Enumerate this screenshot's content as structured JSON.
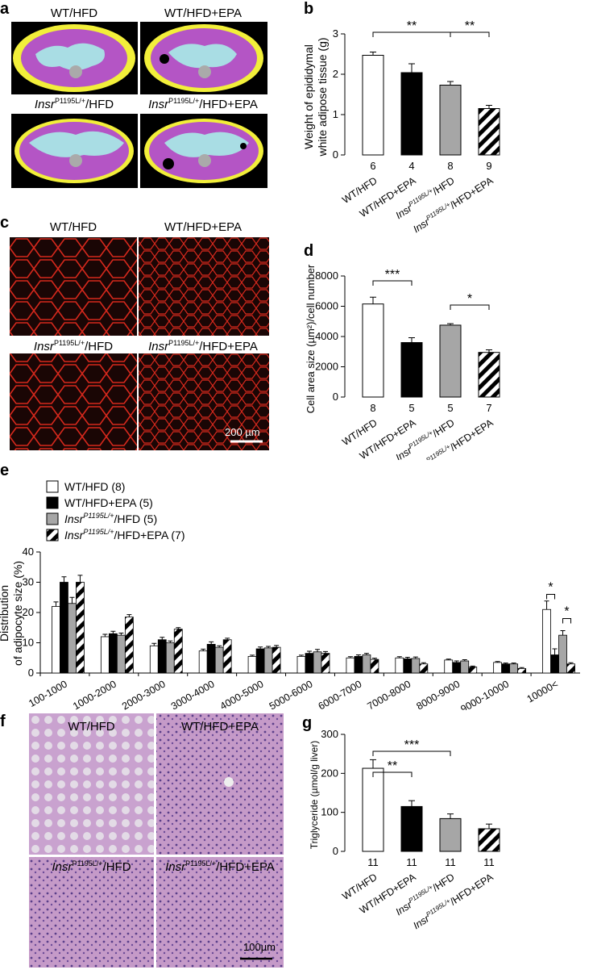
{
  "panels": {
    "a": {
      "letter": "a",
      "labels": [
        "WT/HFD",
        "WT/HFD+EPA",
        "Insr",
        "P1195L/+",
        "/HFD",
        "Insr",
        "P1195L/+",
        "/HFD+EPA"
      ]
    },
    "c": {
      "letter": "c",
      "labels": [
        "WT/HFD",
        "WT/HFD+EPA",
        "Insr",
        "P1195L/+",
        "/HFD",
        "Insr",
        "P1195L/+",
        "/HFD+EPA"
      ],
      "scalebar": "200 µm"
    },
    "f": {
      "letter": "f",
      "labels": [
        "WT/HFD",
        "WT/HFD+EPA",
        "Insr",
        "P1195L/+",
        "/HFD",
        "Insr",
        "P1195L/+",
        "/HFD+EPA"
      ],
      "scalebar": "100µm"
    },
    "b": {
      "letter": "b"
    },
    "d": {
      "letter": "d"
    },
    "e": {
      "letter": "e"
    },
    "g": {
      "letter": "g"
    }
  },
  "groups": {
    "g1": "WT/HFD",
    "g2": "WT/HFD+EPA",
    "g3_italic": "Insr",
    "g3_sup": "P1195L/+",
    "g3_rest": "/HFD",
    "g4_italic": "Insr",
    "g4_sup": "P1195L/+",
    "g4_rest": "/HFD+EPA"
  },
  "colors": {
    "adipose_yellow": "#f2ef3a",
    "tissue_purple": "#b455c5",
    "visceral_blue": "#a9dde4",
    "bar_white": "#ffffff",
    "bar_black": "#000000",
    "bar_grey": "#a6a6a6",
    "stain_red": "#d6281c",
    "he_purple": "#c9a2cf"
  },
  "chart_data": [
    {
      "id": "b",
      "type": "bar",
      "ylabel": "Weight of epididymal white adipose tissue (g)",
      "ylabel_line1": "Weight of epididymal",
      "ylabel_line2": "white adipose tissue (g)",
      "ylim": [
        0,
        3
      ],
      "yticks": [
        "0",
        "1",
        "2",
        "3"
      ],
      "values": [
        2.47,
        2.04,
        1.73,
        1.15
      ],
      "errors": [
        0.08,
        0.22,
        0.09,
        0.08
      ],
      "n": [
        "6",
        "4",
        "8",
        "9"
      ],
      "significance": [
        {
          "from": 0,
          "to": 2,
          "label": "**"
        },
        {
          "from": 2,
          "to": 3,
          "label": "**"
        }
      ]
    },
    {
      "id": "d",
      "type": "bar",
      "ylabel": "Cell area size (µm²)/cell number",
      "ylim": [
        0,
        8000
      ],
      "yticks": [
        "0",
        "2000",
        "4000",
        "6000",
        "8000"
      ],
      "values": [
        6150,
        3600,
        4750,
        2950
      ],
      "errors": [
        450,
        320,
        100,
        170
      ],
      "n": [
        "8",
        "5",
        "5",
        "7"
      ],
      "significance": [
        {
          "from": 0,
          "to": 1,
          "label": "***"
        },
        {
          "from": 2,
          "to": 3,
          "label": "*"
        }
      ]
    },
    {
      "id": "e",
      "type": "bar",
      "ylabel_line1": "Distribution",
      "ylabel_line2": "of adipocyte size (%)",
      "ylim": [
        0,
        40
      ],
      "yticks": [
        "0",
        "10",
        "20",
        "30",
        "40"
      ],
      "categories": [
        "100-1000",
        "1000-2000",
        "2000-3000",
        "3000-4000",
        "4000-5000",
        "5000-6000",
        "6000-7000",
        "7000-8000",
        "8000-9000",
        "9000-10000",
        "10000<"
      ],
      "legend": [
        {
          "plain": "WT/HFD (8)"
        },
        {
          "plain": "WT/HFD+EPA (5)"
        },
        {
          "italic": "Insr",
          "sup": "P1195L/+",
          "rest": "/HFD (5)"
        },
        {
          "italic": "Insr",
          "sup": "P1195L/+",
          "rest": "/HFD+EPA (7)"
        }
      ],
      "series": [
        {
          "values": [
            22,
            12,
            9,
            7.3,
            5.5,
            5.5,
            5,
            5,
            4.3,
            3.5,
            21
          ],
          "errors": [
            1.5,
            0.8,
            0.8,
            0.6,
            0.4,
            0.4,
            0.4,
            0.4,
            0.3,
            0.3,
            2.8
          ]
        },
        {
          "values": [
            30,
            13,
            11,
            9.5,
            8,
            6.5,
            5.5,
            4.7,
            3.5,
            3,
            6
          ],
          "errors": [
            1.8,
            0.8,
            0.8,
            0.8,
            0.6,
            0.7,
            0.5,
            0.5,
            0.5,
            0.3,
            2
          ]
        },
        {
          "values": [
            23,
            12.5,
            10,
            8.5,
            8.3,
            7,
            6,
            4.8,
            4,
            3,
            12.5
          ],
          "errors": [
            2,
            0.7,
            0.6,
            0.5,
            0.5,
            0.8,
            0.5,
            0.5,
            0.4,
            0.3,
            1.5
          ]
        },
        {
          "values": [
            30,
            18.5,
            14.5,
            11,
            8.5,
            6.5,
            4.5,
            3,
            2,
            1.5,
            3
          ],
          "errors": [
            2.3,
            0.8,
            0.5,
            0.5,
            0.6,
            0.6,
            0.4,
            0.4,
            0.3,
            0.3,
            0.4
          ]
        }
      ],
      "significance": [
        {
          "category": 10,
          "from": 0,
          "to": 1,
          "label": "*"
        },
        {
          "category": 10,
          "from": 2,
          "to": 3,
          "label": "*"
        }
      ]
    },
    {
      "id": "g",
      "type": "bar",
      "ylabel": "Triglyceride (µmol/g liver)",
      "ylim": [
        0,
        300
      ],
      "yticks": [
        "0",
        "100",
        "200",
        "300"
      ],
      "values": [
        213,
        115,
        84,
        58
      ],
      "errors": [
        22,
        15,
        12,
        12
      ],
      "n": [
        "11",
        "11",
        "11",
        "11"
      ],
      "significance": [
        {
          "from": 0,
          "to": 1,
          "label": "**"
        },
        {
          "from": 0,
          "to": 2,
          "label": "***"
        }
      ]
    }
  ]
}
